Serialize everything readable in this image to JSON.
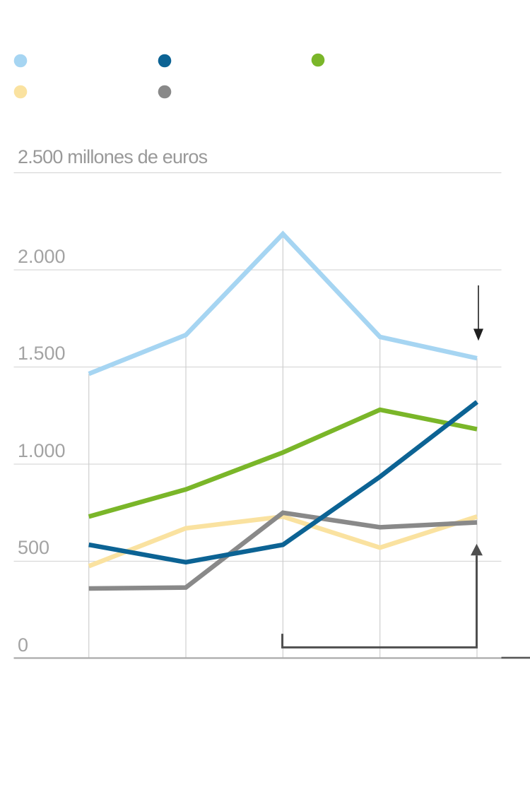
{
  "chart_data": {
    "type": "line",
    "y_axis": {
      "unit_label": "2.500 millones de euros",
      "ticks": [
        {
          "label": "2.000",
          "value": 2000
        },
        {
          "label": "1.500",
          "value": 1500
        },
        {
          "label": "1.000",
          "value": 1000
        },
        {
          "label": "500",
          "value": 500
        },
        {
          "label": "0",
          "value": 0
        }
      ],
      "top_gridline_value": 2500,
      "ylim": [
        0,
        2500
      ],
      "grid": true
    },
    "x_axis": {
      "num_points": 5,
      "labels_visible": false,
      "x_labels": []
    },
    "series": [
      {
        "name": "light-blue",
        "color": "#a6d5f2",
        "values": [
          1465,
          1665,
          2185,
          1655,
          1545
        ]
      },
      {
        "name": "dark-blue",
        "color": "#0c6394",
        "values": [
          585,
          495,
          585,
          935,
          1320
        ]
      },
      {
        "name": "green",
        "color": "#7ab629",
        "values": [
          730,
          870,
          1060,
          1280,
          1180
        ]
      },
      {
        "name": "yellow",
        "color": "#fae2a0",
        "values": [
          475,
          670,
          730,
          570,
          730
        ]
      },
      {
        "name": "gray",
        "color": "#898989",
        "values": [
          360,
          365,
          750,
          675,
          700
        ]
      }
    ],
    "legend": {
      "labels_visible": false,
      "items": [
        {
          "name": "light-blue",
          "color": "#a6d5f2"
        },
        {
          "name": "dark-blue",
          "color": "#0c6394"
        },
        {
          "name": "green",
          "color": "#7ab629"
        },
        {
          "name": "yellow",
          "color": "#fae2a0"
        },
        {
          "name": "gray",
          "color": "#898989"
        }
      ]
    },
    "annotations": {
      "down_arrow": {
        "at_point_index": 4,
        "from_value": 1920,
        "to_value": 1635,
        "color": "#1f1f1f"
      },
      "range_bracket_up_arrow": {
        "from_point_index": 2,
        "to_point_index": 4,
        "bar_value": 57,
        "left_tick_top_value": 127,
        "arrow_tip_value": 590,
        "color": "#4f4f4f"
      }
    },
    "style": {
      "gridline_color": "#d9d9d9",
      "dropline_color": "#cfcfcf",
      "axis_color": "#ababab",
      "axis_right_dark_color": "#5a5a5a",
      "tick_label_color": "#a3a3a3",
      "unit_label_color": "#999999"
    }
  }
}
